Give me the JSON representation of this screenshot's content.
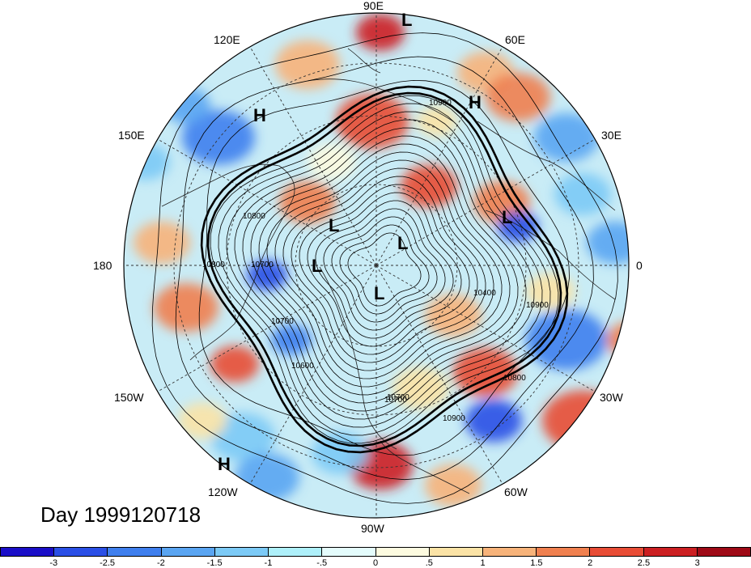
{
  "title": "Day 1999120718",
  "longitude_labels": [
    "90E",
    "60E",
    "30E",
    "0",
    "30W",
    "60W",
    "90W",
    "120W",
    "150W",
    "180",
    "150E",
    "120E"
  ],
  "pressure_systems": [
    "L",
    "H",
    "H",
    "L",
    "L",
    "L",
    "L",
    "L",
    "H"
  ],
  "contour_labels": [
    "10900",
    "10900",
    "10800",
    "10700",
    "10800",
    "10700",
    "10600",
    "10400",
    "10700",
    "10800",
    "10700",
    "10900"
  ],
  "colorbar": {
    "ticks": [
      "-3",
      "-2.5",
      "-2",
      "-1.5",
      "-1",
      "-.5",
      "0",
      ".5",
      "1",
      "1.5",
      "2",
      "2.5",
      "3"
    ],
    "colors": [
      "#1a0ec8",
      "#2a4fe6",
      "#3f7fee",
      "#5aa5f2",
      "#7ccaf6",
      "#aef0fa",
      "#e4fcfc",
      "#fdfbe0",
      "#fbe3a6",
      "#f7b37a",
      "#f0804f",
      "#e84c35",
      "#cc1f22",
      "#9e0a16"
    ]
  }
}
